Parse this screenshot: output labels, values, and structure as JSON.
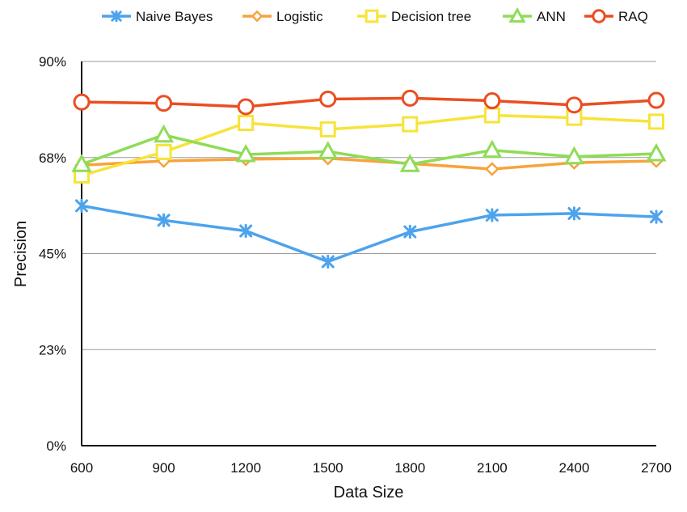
{
  "chart_data": {
    "type": "line",
    "xlabel": "Data Size",
    "ylabel": "Precision",
    "x": [
      600,
      900,
      1200,
      1500,
      1800,
      2100,
      2400,
      2700
    ],
    "x_tick_labels": [
      "600",
      "900",
      "1200",
      "1500",
      "1800",
      "2100",
      "2400",
      "2700"
    ],
    "y_ticks": [
      0,
      22.5,
      45,
      67.5,
      90
    ],
    "y_tick_labels": [
      "0%",
      "23%",
      "45%",
      "68%",
      "90%"
    ],
    "ylim": [
      0,
      90
    ],
    "grid": "horizontal",
    "legend_position": "top",
    "series": [
      {
        "name": "Naive Bayes",
        "color": "#4da3ec",
        "marker": "asterisk",
        "values": [
          56.2,
          52.8,
          50.3,
          43.1,
          50.1,
          54.0,
          54.4,
          53.6
        ]
      },
      {
        "name": "Logistic",
        "color": "#f7a33c",
        "marker": "diamond",
        "values": [
          65.7,
          66.7,
          67.1,
          67.3,
          66.1,
          64.8,
          66.3,
          66.7
        ]
      },
      {
        "name": "Decision tree",
        "color": "#f7e33a",
        "marker": "square",
        "values": [
          63.3,
          68.8,
          75.6,
          74.1,
          75.3,
          77.4,
          76.8,
          75.9
        ]
      },
      {
        "name": "ANN",
        "color": "#8fdc56",
        "marker": "triangle",
        "values": [
          65.9,
          72.8,
          68.2,
          68.9,
          65.9,
          69.2,
          67.7,
          68.4
        ]
      },
      {
        "name": "RAQ",
        "color": "#ea4e22",
        "marker": "circle",
        "values": [
          80.5,
          80.2,
          79.4,
          81.2,
          81.4,
          80.8,
          79.8,
          80.9
        ]
      }
    ]
  }
}
